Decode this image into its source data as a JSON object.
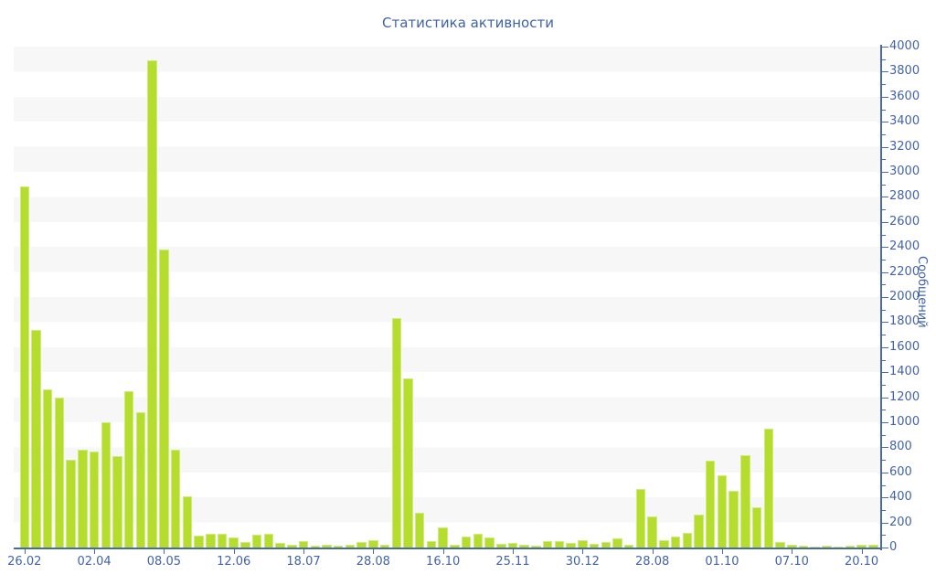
{
  "chart_title": "Статистика активности",
  "colors": {
    "background": "#ffffff",
    "band_gray": "#f7f7f7",
    "band_white": "#ffffff",
    "bar_fill": "#b5dd2e",
    "bar_border": "#cfeb79",
    "axis_line": "#4a69a5",
    "label_text": "#4263a5",
    "title_text": "#3f63a5"
  },
  "chart_data": {
    "type": "bar",
    "title": "Статистика активности",
    "xlabel": "",
    "ylabel": "Сообщений",
    "ylim": [
      0,
      4000
    ],
    "y_major_tick_step": 200,
    "y_minor_tick_step": 100,
    "legend_position": "none",
    "grid": "horizontal striped bands every 200 units, alternating gray/white, gray at top band",
    "x_tick_labels": [
      "26.02",
      "02.04",
      "08.05",
      "12.06",
      "18.07",
      "28.08",
      "16.10",
      "25.11",
      "30.12",
      "28.08",
      "01.10",
      "07.10",
      "20.10"
    ],
    "x_tick_every_n_bars": 6,
    "values": [
      2880,
      1740,
      1260,
      1200,
      700,
      780,
      770,
      1000,
      730,
      1250,
      1080,
      3890,
      2380,
      780,
      410,
      95,
      110,
      110,
      80,
      45,
      105,
      110,
      35,
      25,
      50,
      15,
      25,
      15,
      20,
      45,
      55,
      20,
      1830,
      1350,
      280,
      50,
      160,
      25,
      85,
      110,
      80,
      30,
      35,
      25,
      15,
      50,
      50,
      35,
      60,
      30,
      45,
      70,
      20,
      470,
      250,
      55,
      90,
      120,
      260,
      690,
      580,
      450,
      740,
      320,
      950,
      45,
      20,
      15,
      10,
      15,
      10,
      15,
      20,
      20
    ]
  }
}
